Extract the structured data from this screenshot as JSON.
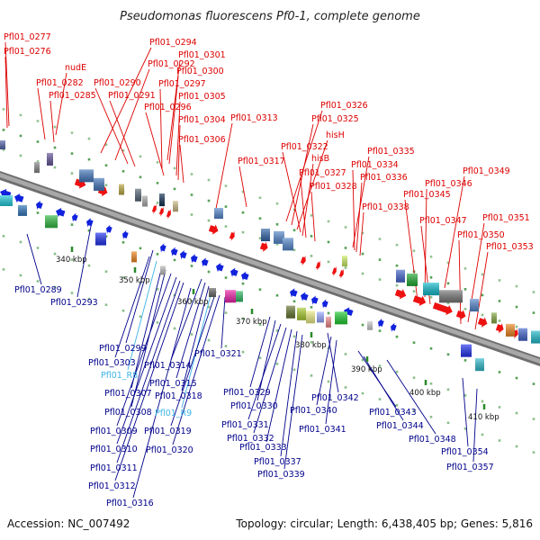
{
  "title": "Pseudomonas fluorescens Pf0-1, complete genome",
  "footer": {
    "accession": "Accession: NC_007492",
    "summary": "Topology: circular; Length: 6,438,405 bp; Genes: 5,816"
  },
  "colors": {
    "top_labels": "#dd0000",
    "bottom_labels": "#00008b",
    "rna_labels": "#3cb4e6",
    "backbone": "#8c8c8c",
    "tick_dots": "#2a8a2a"
  },
  "kbp_ticks": [
    "340 kbp",
    "350 kbp",
    "360 kbp",
    "370 kbp",
    "380 kbp",
    "390 kbp",
    "400 kbp",
    "410 kbp"
  ],
  "top_labels": [
    "Pfl01_0277",
    "Pfl01_0276",
    "nudE",
    "Pfl01_0282",
    "Pfl01_0285",
    "Pfl01_0294",
    "Pfl01_0292",
    "Pfl01_0290",
    "Pfl01_0291",
    "Pfl01_0301",
    "Pfl01_0300",
    "Pfl01_0297",
    "Pfl01_0296",
    "Pfl01_0305",
    "Pfl01_0304",
    "Pfl01_0306",
    "Pfl01_0313",
    "Pfl01_0317",
    "Pfl01_0326",
    "Pfl01_0325",
    "hisH",
    "Pfl01_0322",
    "hisB",
    "Pfl01_0327",
    "Pfl01_0328",
    "Pfl01_0335",
    "Pfl01_0334",
    "Pfl01_0336",
    "Pfl01_0338",
    "Pfl01_0349",
    "Pfl01_0346",
    "Pfl01_0345",
    "Pfl01_0347",
    "Pfl01_0351",
    "Pfl01_0350",
    "Pfl01_0353"
  ],
  "bottom_labels": [
    "Pfl01_0289",
    "Pfl01_0293",
    "Pfl01_0299",
    "Pfl01_0303",
    "Pfl01_R8",
    "Pfl01_0307",
    "Pfl01_0308",
    "Pfl01_0309",
    "Pfl01_0310",
    "Pfl01_0311",
    "Pfl01_0312",
    "Pfl01_0316",
    "Pfl01_0314",
    "Pfl01_0315",
    "Pfl01_0318",
    "Pfl01_R9",
    "Pfl01_0319",
    "Pfl01_0320",
    "Pfl01_0321",
    "Pfl01_0329",
    "Pfl01_0330",
    "Pfl01_0331",
    "Pfl01_0332",
    "Pfl01_0333",
    "Pfl01_0337",
    "Pfl01_0339",
    "Pfl01_0342",
    "Pfl01_0340",
    "Pfl01_0341",
    "Pfl01_0343",
    "Pfl01_0344",
    "Pfl01_0348",
    "Pfl01_0354",
    "Pfl01_0357"
  ],
  "rna_labels": [
    "Pfl01_R8",
    "Pfl01_R9"
  ]
}
